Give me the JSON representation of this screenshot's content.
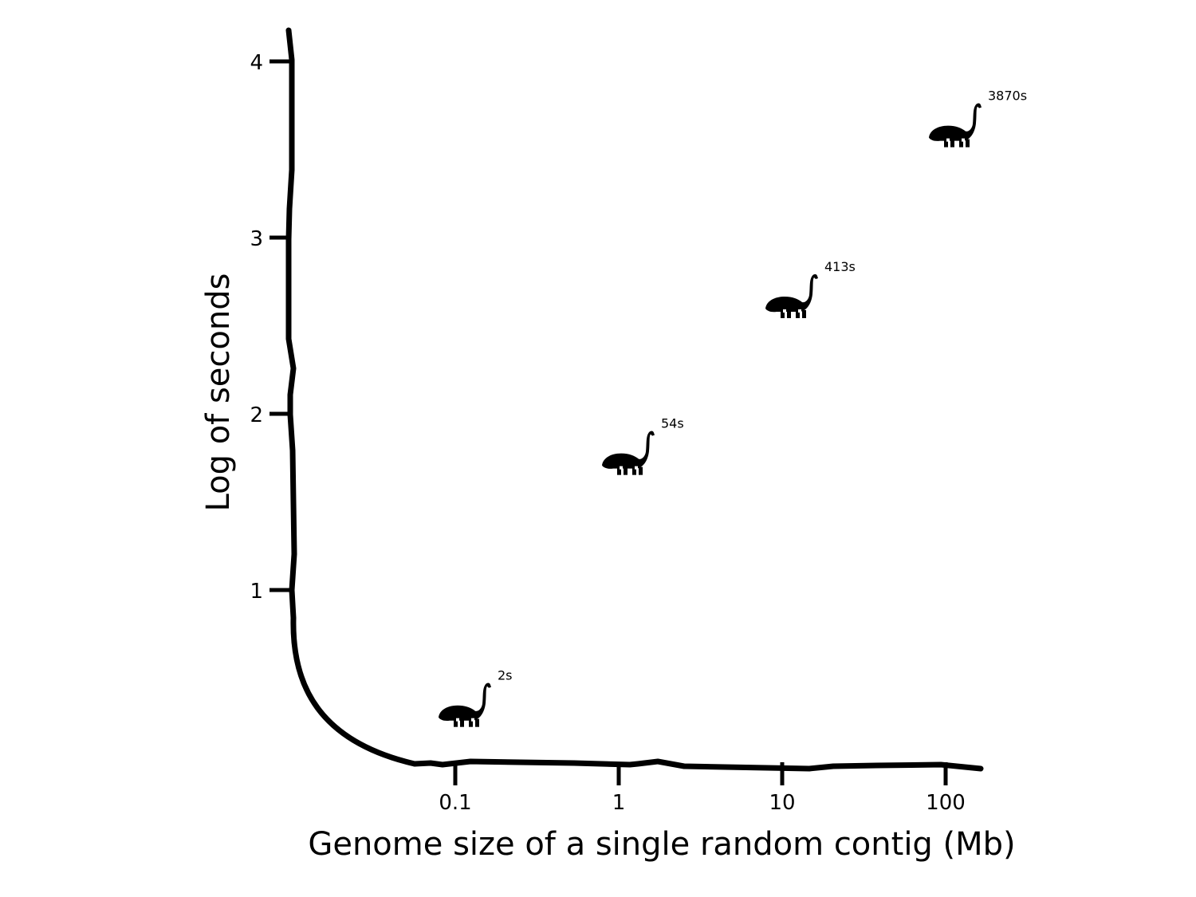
{
  "chart_data": {
    "type": "scatter",
    "title": "",
    "xlabel": "Genome size of a single random contig (Mb)",
    "ylabel": "Log of seconds",
    "x_scale": "log",
    "x_ticks": [
      {
        "value": 0.1,
        "label": "0.1"
      },
      {
        "value": 1,
        "label": "1"
      },
      {
        "value": 10,
        "label": "10"
      },
      {
        "value": 100,
        "label": "100"
      }
    ],
    "y_ticks": [
      {
        "value": 1,
        "label": "1"
      },
      {
        "value": 2,
        "label": "2"
      },
      {
        "value": 3,
        "label": "3"
      },
      {
        "value": 4,
        "label": "4"
      }
    ],
    "points": [
      {
        "x": 0.1,
        "y": 0.3,
        "label": "2s"
      },
      {
        "x": 1,
        "y": 1.73,
        "label": "54s"
      },
      {
        "x": 10,
        "y": 2.62,
        "label": "413s"
      },
      {
        "x": 100,
        "y": 3.59,
        "label": "3870s"
      }
    ],
    "marker_icon": "sauropod-dinosaur-icon",
    "grid": false,
    "legend": "none"
  }
}
